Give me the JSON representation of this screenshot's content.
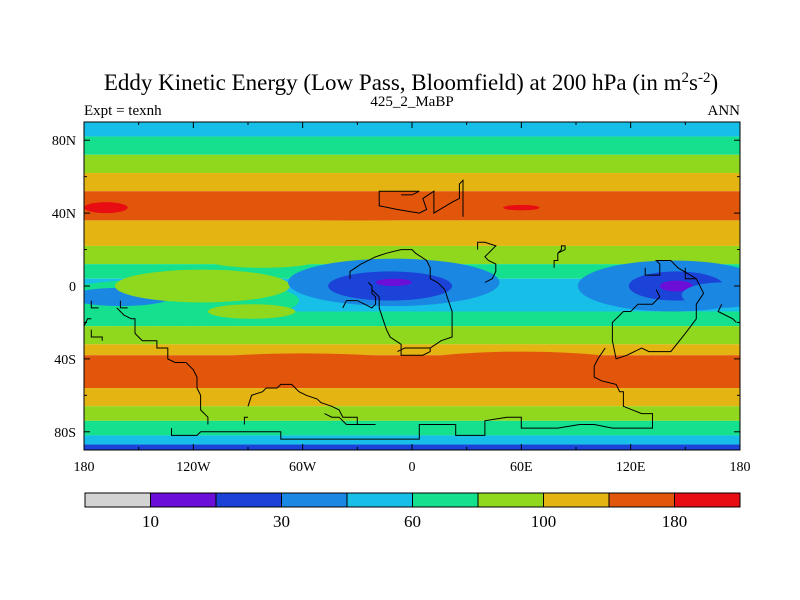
{
  "chart_data": {
    "type": "heatmap",
    "title": {
      "main": "Eddy Kinetic Energy (Low Pass, Bloomfield) at 200 hPa (in m",
      "sup1": "2",
      "mid": "s",
      "sup2": "-2",
      "end": ")"
    },
    "left_label": "Expt = texnh",
    "center_label": "425_2_MaBP",
    "right_label": "ANN",
    "x_ticks": [
      {
        "value": -180,
        "label": "180"
      },
      {
        "value": -120,
        "label": "120W"
      },
      {
        "value": -60,
        "label": "60W"
      },
      {
        "value": 0,
        "label": "0"
      },
      {
        "value": 60,
        "label": "60E"
      },
      {
        "value": 120,
        "label": "120E"
      },
      {
        "value": 180,
        "label": "180"
      }
    ],
    "y_ticks": [
      {
        "value": 80,
        "label": "80N"
      },
      {
        "value": 40,
        "label": "40N"
      },
      {
        "value": 0,
        "label": "0"
      },
      {
        "value": -40,
        "label": "40S"
      },
      {
        "value": -80,
        "label": "80S"
      }
    ],
    "xlim": [
      -180,
      180
    ],
    "ylim": [
      -90,
      90
    ],
    "colorbar": {
      "colors": [
        "#d3d3d3",
        "#6a0ed8",
        "#1c43d7",
        "#1a88e3",
        "#17bfe8",
        "#14e08d",
        "#8fd81e",
        "#e4b512",
        "#e2560c",
        "#e80d12"
      ],
      "labels": [
        {
          "boundary": 1,
          "label": "10"
        },
        {
          "boundary": 3,
          "label": "30"
        },
        {
          "boundary": 5,
          "label": "60"
        },
        {
          "boundary": 7,
          "label": "100"
        },
        {
          "boundary": 9,
          "label": "180"
        }
      ]
    },
    "zonal_bands": [
      {
        "lat": [
          82,
          90
        ],
        "level": 4
      },
      {
        "lat": [
          72,
          82
        ],
        "level": 5
      },
      {
        "lat": [
          62,
          72
        ],
        "level": 6
      },
      {
        "lat": [
          52,
          62
        ],
        "level": 7
      },
      {
        "lat": [
          36,
          52
        ],
        "level": 8
      },
      {
        "lat": [
          22,
          36
        ],
        "level": 7
      },
      {
        "lat": [
          12,
          22
        ],
        "level": 6
      },
      {
        "lat": [
          4,
          12
        ],
        "level": 5
      },
      {
        "lat": [
          -14,
          4
        ],
        "level": 4
      },
      {
        "lat": [
          -22,
          -14
        ],
        "level": 5
      },
      {
        "lat": [
          -32,
          -22
        ],
        "level": 6
      },
      {
        "lat": [
          -38,
          -32
        ],
        "level": 7
      },
      {
        "lat": [
          -56,
          -38
        ],
        "level": 8
      },
      {
        "lat": [
          -66,
          -56
        ],
        "level": 7
      },
      {
        "lat": [
          -74,
          -66
        ],
        "level": 6
      },
      {
        "lat": [
          -82,
          -74
        ],
        "level": 5
      },
      {
        "lat": [
          -87,
          -82
        ],
        "level": 4
      },
      {
        "lat": [
          -90,
          -87
        ],
        "level": 2
      }
    ],
    "blobs": [
      {
        "center": [
          -132,
          -8
        ],
        "radius": [
          70,
          12
        ],
        "level": 5
      },
      {
        "center": [
          -160,
          -6
        ],
        "radius": [
          28,
          5
        ],
        "level": 3
      },
      {
        "center": [
          -115,
          0
        ],
        "radius": [
          48,
          9
        ],
        "level": 6
      },
      {
        "center": [
          -82,
          14
        ],
        "radius": [
          30,
          4
        ],
        "level": 6
      },
      {
        "center": [
          -88,
          -14
        ],
        "radius": [
          24,
          4
        ],
        "level": 6
      },
      {
        "center": [
          -10,
          2
        ],
        "radius": [
          58,
          13
        ],
        "level": 3
      },
      {
        "center": [
          -12,
          0
        ],
        "radius": [
          34,
          8
        ],
        "level": 2
      },
      {
        "center": [
          -10,
          2
        ],
        "radius": [
          10,
          2
        ],
        "level": 1
      },
      {
        "center": [
          143,
          0
        ],
        "radius": [
          52,
          14
        ],
        "level": 3
      },
      {
        "center": [
          145,
          0
        ],
        "radius": [
          26,
          8
        ],
        "level": 2
      },
      {
        "center": [
          145,
          0
        ],
        "radius": [
          9,
          3
        ],
        "level": 1
      },
      {
        "center": [
          170,
          -5
        ],
        "radius": [
          22,
          7
        ],
        "level": 3
      },
      {
        "center": [
          -150,
          44
        ],
        "radius": [
          60,
          6
        ],
        "level": 8
      },
      {
        "center": [
          -168,
          43
        ],
        "radius": [
          12,
          3
        ],
        "level": 9
      },
      {
        "center": [
          60,
          43
        ],
        "radius": [
          10,
          1.5
        ],
        "level": 9
      },
      {
        "center": [
          -30,
          40
        ],
        "radius": [
          70,
          4
        ],
        "level": 8
      },
      {
        "center": [
          -60,
          -46
        ],
        "radius": [
          80,
          9
        ],
        "level": 8
      },
      {
        "center": [
          60,
          -44
        ],
        "radius": [
          65,
          8
        ],
        "level": 8
      }
    ],
    "coastlines": [
      [
        [
          -6,
          50
        ],
        [
          0,
          50
        ],
        [
          4,
          52
        ],
        [
          -18,
          52
        ],
        [
          -18,
          44
        ],
        [
          -8,
          42
        ],
        [
          4,
          40
        ],
        [
          8,
          42
        ],
        [
          6,
          48
        ],
        [
          12,
          52
        ],
        [
          12,
          40
        ],
        [
          22,
          46
        ],
        [
          26,
          48
        ],
        [
          26,
          56
        ],
        [
          28,
          58
        ],
        [
          28,
          38
        ]
      ],
      [
        [
          -34,
          4
        ],
        [
          -34,
          8
        ],
        [
          -28,
          12
        ],
        [
          -20,
          16
        ],
        [
          -14,
          18
        ],
        [
          -6,
          20
        ],
        [
          0,
          20
        ],
        [
          2,
          18
        ],
        [
          8,
          14
        ],
        [
          10,
          10
        ],
        [
          10,
          4
        ],
        [
          14,
          2
        ],
        [
          18,
          -2
        ],
        [
          20,
          -8
        ],
        [
          22,
          -14
        ],
        [
          22,
          -28
        ],
        [
          16,
          -30
        ],
        [
          10,
          -34
        ],
        [
          -4,
          -34
        ],
        [
          -8,
          -36
        ]
      ],
      [
        [
          40,
          2
        ],
        [
          44,
          4
        ],
        [
          46,
          8
        ],
        [
          46,
          12
        ],
        [
          42,
          14
        ],
        [
          40,
          16
        ],
        [
          42,
          18
        ],
        [
          46,
          22
        ],
        [
          40,
          24
        ],
        [
          36,
          24
        ],
        [
          36,
          20
        ]
      ],
      [
        [
          10,
          -34
        ],
        [
          10,
          -36
        ],
        [
          6,
          -38
        ],
        [
          -6,
          -38
        ],
        [
          -6,
          -32
        ],
        [
          -12,
          -28
        ],
        [
          -14,
          -24
        ],
        [
          -16,
          -18
        ],
        [
          -18,
          -12
        ],
        [
          -18,
          -6
        ],
        [
          -22,
          -2
        ]
      ],
      [
        [
          128,
          10
        ],
        [
          128,
          6
        ],
        [
          136,
          6
        ],
        [
          136,
          12
        ],
        [
          134,
          14
        ],
        [
          142,
          14
        ],
        [
          146,
          10
        ],
        [
          156,
          4
        ],
        [
          160,
          -4
        ],
        [
          156,
          -10
        ],
        [
          156,
          -18
        ],
        [
          150,
          -26
        ],
        [
          142,
          -36
        ],
        [
          130,
          -36
        ],
        [
          126,
          -34
        ],
        [
          118,
          -38
        ],
        [
          112,
          -40
        ],
        [
          110,
          -30
        ],
        [
          110,
          -20
        ],
        [
          116,
          -14
        ],
        [
          120,
          -14
        ],
        [
          124,
          -10
        ],
        [
          132,
          -10
        ],
        [
          136,
          -6
        ],
        [
          134,
          -2
        ]
      ],
      [
        [
          150,
          10
        ],
        [
          150,
          4
        ],
        [
          156,
          4
        ]
      ],
      [
        [
          170,
          -10
        ],
        [
          168,
          -14
        ],
        [
          176,
          -18
        ],
        [
          178,
          -20
        ]
      ],
      [
        [
          106,
          -34
        ],
        [
          102,
          -40
        ],
        [
          100,
          -44
        ],
        [
          100,
          -50
        ],
        [
          104,
          -52
        ],
        [
          112,
          -54
        ],
        [
          114,
          -58
        ],
        [
          116,
          -58
        ],
        [
          116,
          -66
        ],
        [
          126,
          -70
        ],
        [
          132,
          -70
        ],
        [
          132,
          -78
        ],
        [
          110,
          -78
        ],
        [
          100,
          -76
        ],
        [
          92,
          -76
        ],
        [
          80,
          -78
        ],
        [
          60,
          -78
        ],
        [
          60,
          -72
        ],
        [
          52,
          -72
        ],
        [
          40,
          -74
        ],
        [
          40,
          -82
        ],
        [
          24,
          -82
        ],
        [
          24,
          -76
        ],
        [
          4,
          -76
        ],
        [
          4,
          -84
        ],
        [
          -72,
          -84
        ],
        [
          -72,
          -80
        ],
        [
          -116,
          -80
        ],
        [
          -118,
          -82
        ],
        [
          -132,
          -82
        ],
        [
          -132,
          -78
        ]
      ],
      [
        [
          -162,
          -12
        ],
        [
          -158,
          -16
        ],
        [
          -154,
          -18
        ],
        [
          -152,
          -18
        ],
        [
          -152,
          -26
        ],
        [
          -148,
          -30
        ],
        [
          -140,
          -30
        ],
        [
          -140,
          -34
        ],
        [
          -134,
          -34
        ],
        [
          -134,
          -40
        ],
        [
          -130,
          -42
        ],
        [
          -124,
          -42
        ],
        [
          -120,
          -46
        ],
        [
          -118,
          -50
        ],
        [
          -118,
          -56
        ],
        [
          -116,
          -60
        ],
        [
          -116,
          -68
        ],
        [
          -112,
          -72
        ],
        [
          -112,
          -76
        ]
      ],
      [
        [
          -176,
          -24
        ],
        [
          -176,
          -28
        ],
        [
          -170,
          -28
        ],
        [
          -170,
          -30
        ]
      ],
      [
        [
          -180,
          -22
        ],
        [
          -178,
          -18
        ],
        [
          -176,
          -18
        ]
      ],
      [
        [
          -90,
          -66
        ],
        [
          -88,
          -60
        ],
        [
          -82,
          -58
        ],
        [
          -80,
          -56
        ],
        [
          -74,
          -56
        ],
        [
          -72,
          -54
        ],
        [
          -66,
          -54
        ],
        [
          -62,
          -58
        ],
        [
          -58,
          -60
        ],
        [
          -52,
          -62
        ],
        [
          -50,
          -64
        ],
        [
          -44,
          -66
        ],
        [
          -40,
          -68
        ],
        [
          -38,
          -72
        ],
        [
          -30,
          -72
        ],
        [
          -30,
          -76
        ],
        [
          -20,
          -76
        ]
      ],
      [
        [
          -48,
          -70
        ],
        [
          -44,
          -72
        ],
        [
          -40,
          -72
        ],
        [
          -36,
          -76
        ],
        [
          -30,
          -76
        ]
      ],
      [
        [
          -90,
          -72
        ],
        [
          -92,
          -72
        ],
        [
          -92,
          -76
        ]
      ],
      [
        [
          -38,
          -12
        ],
        [
          -36,
          -8
        ],
        [
          -30,
          -8
        ],
        [
          -26,
          -10
        ],
        [
          -22,
          -12
        ],
        [
          -20,
          -10
        ],
        [
          -20,
          -6
        ],
        [
          -22,
          -4
        ],
        [
          -22,
          0
        ],
        [
          -24,
          2
        ]
      ],
      [
        [
          -160,
          -8
        ],
        [
          -160,
          -12
        ],
        [
          -156,
          -12
        ]
      ],
      [
        [
          -176,
          -8
        ],
        [
          -176,
          -12
        ],
        [
          -172,
          -12
        ]
      ],
      [
        [
          78,
          10
        ],
        [
          78,
          14
        ],
        [
          80,
          14
        ],
        [
          80,
          18
        ],
        [
          82,
          20
        ],
        [
          82,
          22
        ],
        [
          84,
          22
        ],
        [
          84,
          20
        ],
        [
          80,
          18
        ]
      ]
    ]
  }
}
